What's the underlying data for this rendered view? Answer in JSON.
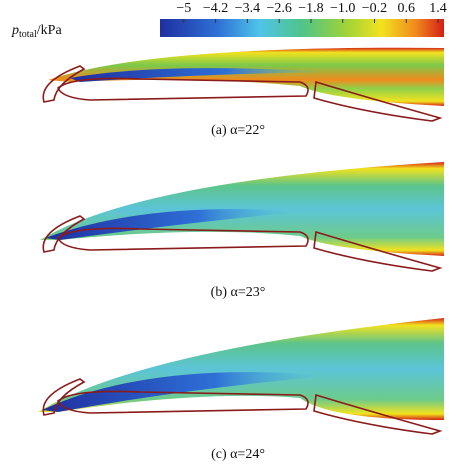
{
  "colorbar": {
    "label": {
      "symbol": "p",
      "subscript": "total",
      "unit": "/kPa"
    },
    "lim": [
      -5.6,
      1.55
    ],
    "ticks": [
      {
        "value": -5,
        "label": "−5"
      },
      {
        "value": -4.2,
        "label": "−4.2"
      },
      {
        "value": -3.4,
        "label": "−3.4"
      },
      {
        "value": -2.6,
        "label": "−2.6"
      },
      {
        "value": -1.8,
        "label": "−1.8"
      },
      {
        "value": -1.0,
        "label": "−1.0"
      },
      {
        "value": -0.2,
        "label": "−0.2"
      },
      {
        "value": 0.6,
        "label": "0.6"
      },
      {
        "value": 1.4,
        "label": "1.4"
      }
    ]
  },
  "panels": [
    {
      "caption": "(a) α=22°"
    },
    {
      "caption": "(b) α=23°"
    },
    {
      "caption": "(c) α=24°"
    }
  ]
}
